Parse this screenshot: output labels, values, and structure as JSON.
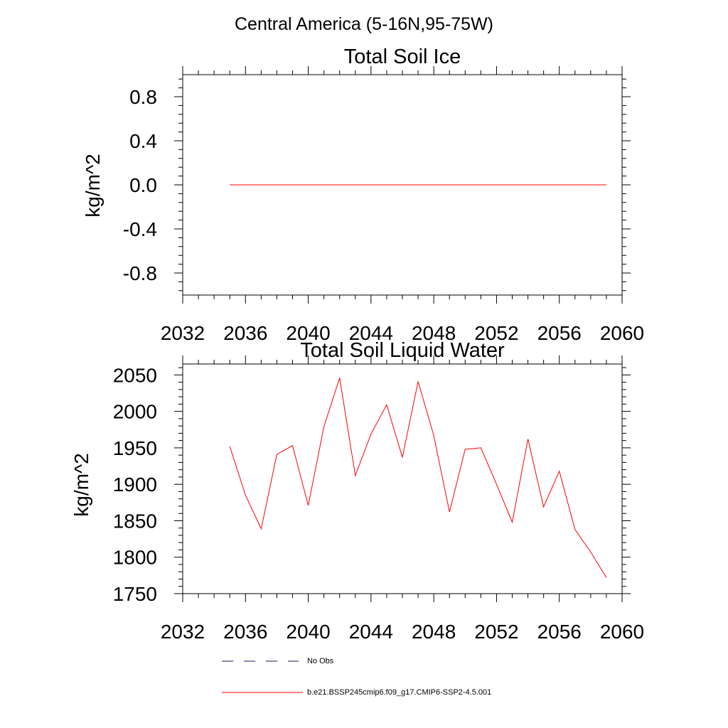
{
  "page_title": "Central America (5-16N,95-75W)",
  "legend": {
    "items": [
      {
        "label": "No Obs",
        "style": "dashed",
        "color": "#1a1a5a"
      },
      {
        "label": "b.e21.BSSP245cmip6.f09_g17.CMIP6-SSP2-4.5.001",
        "style": "solid",
        "color": "#ff0000"
      }
    ]
  },
  "chart_data": [
    {
      "type": "line",
      "title": "Total Soil Ice",
      "xlabel": "",
      "ylabel": "kg/m^2",
      "xlim": [
        2032,
        2060
      ],
      "ylim": [
        -1.0,
        1.0
      ],
      "x_ticks": [
        2032,
        2036,
        2040,
        2044,
        2048,
        2052,
        2056,
        2060
      ],
      "y_ticks": [
        -0.8,
        -0.4,
        0.0,
        0.4,
        0.8
      ],
      "y_tick_labels": [
        "-0.8",
        "-0.4",
        "0.0",
        "0.4",
        "0.8"
      ],
      "grid": false,
      "series": [
        {
          "name": "b.e21.BSSP245cmip6.f09_g17.CMIP6-SSP2-4.5.001",
          "color": "#ff0000",
          "x": [
            2035,
            2036,
            2037,
            2038,
            2039,
            2040,
            2041,
            2042,
            2043,
            2044,
            2045,
            2046,
            2047,
            2048,
            2049,
            2050,
            2051,
            2052,
            2053,
            2054,
            2055,
            2056,
            2057,
            2058,
            2059
          ],
          "y": [
            0,
            0,
            0,
            0,
            0,
            0,
            0,
            0,
            0,
            0,
            0,
            0,
            0,
            0,
            0,
            0,
            0,
            0,
            0,
            0,
            0,
            0,
            0,
            0,
            0
          ]
        }
      ]
    },
    {
      "type": "line",
      "title": "Total Soil Liquid Water",
      "xlabel": "",
      "ylabel": "kg/m^2",
      "xlim": [
        2032,
        2060
      ],
      "ylim": [
        1750,
        2065
      ],
      "x_ticks": [
        2032,
        2036,
        2040,
        2044,
        2048,
        2052,
        2056,
        2060
      ],
      "y_ticks": [
        1750,
        1800,
        1850,
        1900,
        1950,
        2000,
        2050
      ],
      "y_tick_labels": [
        "1750",
        "1800",
        "1850",
        "1900",
        "1950",
        "2000",
        "2050"
      ],
      "grid": false,
      "series": [
        {
          "name": "b.e21.BSSP245cmip6.f09_g17.CMIP6-SSP2-4.5.001",
          "color": "#ff0000",
          "x": [
            2035,
            2036,
            2037,
            2038,
            2039,
            2040,
            2041,
            2042,
            2043,
            2044,
            2045,
            2046,
            2047,
            2048,
            2049,
            2050,
            2051,
            2052,
            2053,
            2054,
            2055,
            2056,
            2057,
            2058,
            2059
          ],
          "y": [
            1952,
            1885,
            1839,
            1941,
            1953,
            1871,
            1979,
            2046,
            1912,
            1969,
            2009,
            1937,
            2041,
            1967,
            1862,
            1948,
            1950,
            1900,
            1848,
            1962,
            1869,
            1918,
            1838,
            1807,
            1772
          ]
        }
      ]
    }
  ]
}
